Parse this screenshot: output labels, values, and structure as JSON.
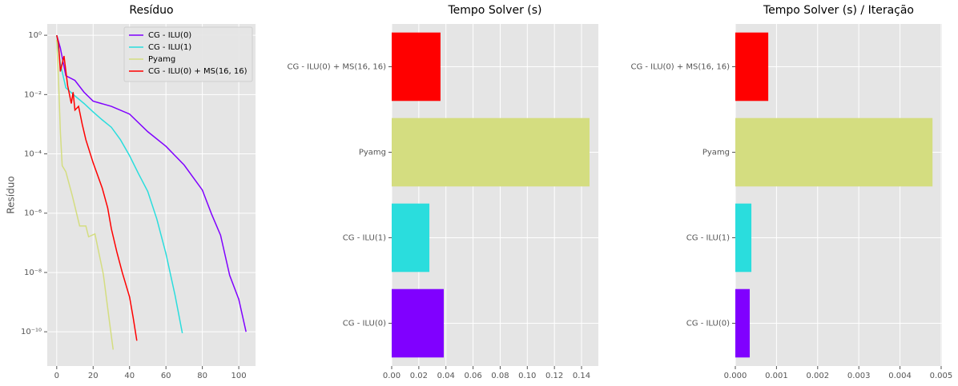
{
  "chart_data": [
    {
      "type": "line",
      "title": "Resíduo",
      "ylabel": "Resíduo",
      "yscale": "log",
      "grid": true,
      "legend": "upper right",
      "xlim": [
        -5.2,
        109.2
      ],
      "xticks": [
        0,
        20,
        40,
        60,
        80,
        100
      ],
      "ylim": [
        7e-12,
        2.4
      ],
      "yticks": [
        {
          "value": 1,
          "label": "10⁰"
        },
        {
          "value": 0.01,
          "label": "10⁻²"
        },
        {
          "value": 0.0001,
          "label": "10⁻⁴"
        },
        {
          "value": 1e-06,
          "label": "10⁻⁶"
        },
        {
          "value": 1e-08,
          "label": "10⁻⁸"
        },
        {
          "value": 1e-10,
          "label": "10⁻¹⁰"
        }
      ],
      "series": [
        {
          "name": "CG - ILU(0)",
          "color": "#8000ff",
          "x": [
            0,
            2,
            5,
            10,
            15,
            20,
            30,
            40,
            50,
            60,
            70,
            80,
            85,
            90,
            95,
            100,
            104
          ],
          "values": [
            1,
            0.37,
            0.043,
            0.03,
            0.012,
            0.006,
            0.004,
            0.0022,
            0.00056,
            0.00018,
            4.2e-05,
            6e-06,
            9.5e-07,
            1.8e-07,
            8e-09,
            1.25e-09,
            1e-10
          ]
        },
        {
          "name": "CG - ILU(1)",
          "color": "#2adddd",
          "x": [
            0,
            2,
            5,
            10,
            15,
            20,
            25,
            30,
            35,
            40,
            45,
            50,
            55,
            60,
            65,
            69
          ],
          "values": [
            1,
            0.11,
            0.017,
            0.009,
            0.005,
            0.0026,
            0.0014,
            0.00079,
            0.0003,
            8.7e-05,
            2.1e-05,
            5.4e-06,
            6.3e-07,
            4.3e-08,
            1.7e-09,
            9e-11
          ]
        },
        {
          "name": "Pyamg",
          "color": "#d4dd80",
          "x": [
            0,
            1,
            2,
            3,
            5,
            8.5,
            11.2,
            12.6,
            16,
            17.5,
            21,
            22.9,
            25.6,
            29,
            31
          ],
          "values": [
            0.7,
            0.03,
            0.00056,
            4e-05,
            2.5e-05,
            4e-06,
            8.3e-07,
            3.7e-07,
            3.7e-07,
            1.6e-07,
            2e-07,
            5.5e-08,
            8.7e-09,
            2.1e-10,
            2.5e-11
          ]
        },
        {
          "name": "CG - ILU(0) + MS(16, 16)",
          "color": "#ff0000",
          "x": [
            0,
            1,
            2,
            4,
            6,
            8,
            9,
            10,
            12,
            14,
            16,
            20,
            25,
            28,
            30,
            33,
            36,
            40,
            42,
            44
          ],
          "values": [
            1,
            0.5,
            0.06,
            0.2,
            0.02,
            0.005,
            0.012,
            0.003,
            0.004,
            0.001,
            0.0003,
            5e-05,
            7e-06,
            1.5e-06,
            3e-07,
            5e-08,
            1e-08,
            1.5e-09,
            3e-10,
            5e-11
          ]
        }
      ]
    },
    {
      "type": "barh",
      "title": "Tempo Solver (s)",
      "grid": true,
      "categories": [
        "CG - ILU(0)",
        "CG - ILU(1)",
        "Pyamg",
        "CG - ILU(0) + MS(16, 16)"
      ],
      "values": [
        0.0384,
        0.0278,
        0.1459,
        0.036
      ],
      "colors": [
        "#8000ff",
        "#2adddd",
        "#d4dd80",
        "#ff0000"
      ],
      "xlim": [
        0,
        0.1524
      ],
      "xticks": [
        {
          "value": 0,
          "label": "0.00"
        },
        {
          "value": 0.02,
          "label": "0.02"
        },
        {
          "value": 0.04,
          "label": "0.04"
        },
        {
          "value": 0.06,
          "label": "0.06"
        },
        {
          "value": 0.08,
          "label": "0.08"
        },
        {
          "value": 0.1,
          "label": "0.10"
        },
        {
          "value": 0.12,
          "label": "0.12"
        },
        {
          "value": 0.14,
          "label": "0.14"
        }
      ]
    },
    {
      "type": "barh",
      "title": "Tempo Solver (s) / Iteração",
      "grid": true,
      "categories": [
        "CG - ILU(0)",
        "CG - ILU(1)",
        "Pyamg",
        "CG - ILU(0) + MS(16, 16)"
      ],
      "values": [
        0.00035,
        0.00039,
        0.00479,
        0.0008
      ],
      "colors": [
        "#8000ff",
        "#2adddd",
        "#d4dd80",
        "#ff0000"
      ],
      "xlim": [
        0,
        0.00502
      ],
      "xticks": [
        {
          "value": 0,
          "label": "0.000"
        },
        {
          "value": 0.001,
          "label": "0.001"
        },
        {
          "value": 0.002,
          "label": "0.002"
        },
        {
          "value": 0.003,
          "label": "0.003"
        },
        {
          "value": 0.004,
          "label": "0.004"
        },
        {
          "value": 0.005,
          "label": "0.005"
        }
      ]
    }
  ]
}
